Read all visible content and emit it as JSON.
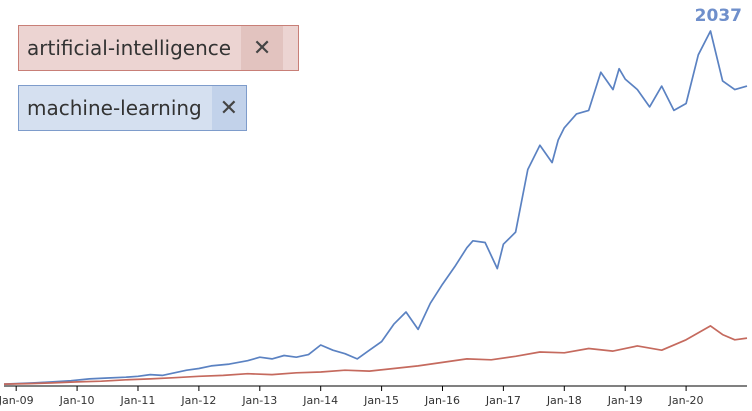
{
  "tags": [
    {
      "label": "artificial-intelligence",
      "remove": "✕",
      "bg": "#ecd4d2",
      "border": "#c87f77",
      "xbg": "#e2c3bf"
    },
    {
      "label": "machine-learning",
      "remove": "✕",
      "bg": "#d5e0f0",
      "border": "#7e9ccb",
      "xbg": "#c2d2ea"
    }
  ],
  "peak_label": "2037",
  "peak_color": "#6f8fcb",
  "chart_data": {
    "type": "line",
    "x_ticks": [
      "Jan-09",
      "Jan-10",
      "Jan-11",
      "Jan-12",
      "Jan-13",
      "Jan-14",
      "Jan-15",
      "Jan-16",
      "Jan-17",
      "Jan-18",
      "Jan-19",
      "Jan-20"
    ],
    "ylim": [
      0,
      2037
    ],
    "series": [
      {
        "name": "machine-learning",
        "color": "#5b82c2",
        "points": [
          [
            2008.8,
            5
          ],
          [
            2009.0,
            8
          ],
          [
            2009.3,
            12
          ],
          [
            2009.6,
            18
          ],
          [
            2009.9,
            25
          ],
          [
            2010.2,
            35
          ],
          [
            2010.5,
            40
          ],
          [
            2010.8,
            45
          ],
          [
            2011.0,
            50
          ],
          [
            2011.2,
            60
          ],
          [
            2011.4,
            55
          ],
          [
            2011.6,
            70
          ],
          [
            2011.8,
            85
          ],
          [
            2012.0,
            95
          ],
          [
            2012.2,
            110
          ],
          [
            2012.5,
            120
          ],
          [
            2012.8,
            140
          ],
          [
            2013.0,
            160
          ],
          [
            2013.2,
            150
          ],
          [
            2013.4,
            170
          ],
          [
            2013.6,
            160
          ],
          [
            2013.8,
            175
          ],
          [
            2014.0,
            230
          ],
          [
            2014.2,
            200
          ],
          [
            2014.4,
            180
          ],
          [
            2014.6,
            150
          ],
          [
            2014.8,
            200
          ],
          [
            2015.0,
            250
          ],
          [
            2015.2,
            350
          ],
          [
            2015.4,
            420
          ],
          [
            2015.6,
            320
          ],
          [
            2015.8,
            470
          ],
          [
            2016.0,
            580
          ],
          [
            2016.2,
            680
          ],
          [
            2016.4,
            790
          ],
          [
            2016.5,
            830
          ],
          [
            2016.7,
            820
          ],
          [
            2016.9,
            670
          ],
          [
            2017.0,
            810
          ],
          [
            2017.2,
            880
          ],
          [
            2017.4,
            1240
          ],
          [
            2017.6,
            1380
          ],
          [
            2017.8,
            1280
          ],
          [
            2017.9,
            1410
          ],
          [
            2018.0,
            1480
          ],
          [
            2018.2,
            1560
          ],
          [
            2018.4,
            1580
          ],
          [
            2018.6,
            1800
          ],
          [
            2018.8,
            1700
          ],
          [
            2018.9,
            1820
          ],
          [
            2019.0,
            1760
          ],
          [
            2019.2,
            1700
          ],
          [
            2019.4,
            1600
          ],
          [
            2019.6,
            1720
          ],
          [
            2019.8,
            1580
          ],
          [
            2020.0,
            1620
          ],
          [
            2020.2,
            1900
          ],
          [
            2020.4,
            2037
          ],
          [
            2020.6,
            1750
          ],
          [
            2020.8,
            1700
          ],
          [
            2021.0,
            1720
          ]
        ]
      },
      {
        "name": "artificial-intelligence",
        "color": "#c56a5e",
        "points": [
          [
            2008.8,
            5
          ],
          [
            2009.2,
            8
          ],
          [
            2009.6,
            12
          ],
          [
            2010.0,
            18
          ],
          [
            2010.4,
            22
          ],
          [
            2010.8,
            30
          ],
          [
            2011.2,
            35
          ],
          [
            2011.6,
            42
          ],
          [
            2012.0,
            50
          ],
          [
            2012.4,
            55
          ],
          [
            2012.8,
            65
          ],
          [
            2013.2,
            60
          ],
          [
            2013.6,
            70
          ],
          [
            2014.0,
            75
          ],
          [
            2014.4,
            85
          ],
          [
            2014.8,
            80
          ],
          [
            2015.2,
            95
          ],
          [
            2015.6,
            110
          ],
          [
            2016.0,
            130
          ],
          [
            2016.4,
            150
          ],
          [
            2016.8,
            145
          ],
          [
            2017.2,
            165
          ],
          [
            2017.6,
            190
          ],
          [
            2018.0,
            185
          ],
          [
            2018.4,
            210
          ],
          [
            2018.8,
            195
          ],
          [
            2019.2,
            225
          ],
          [
            2019.6,
            200
          ],
          [
            2020.0,
            260
          ],
          [
            2020.4,
            340
          ],
          [
            2020.6,
            290
          ],
          [
            2020.8,
            260
          ],
          [
            2021.0,
            270
          ]
        ]
      }
    ]
  }
}
